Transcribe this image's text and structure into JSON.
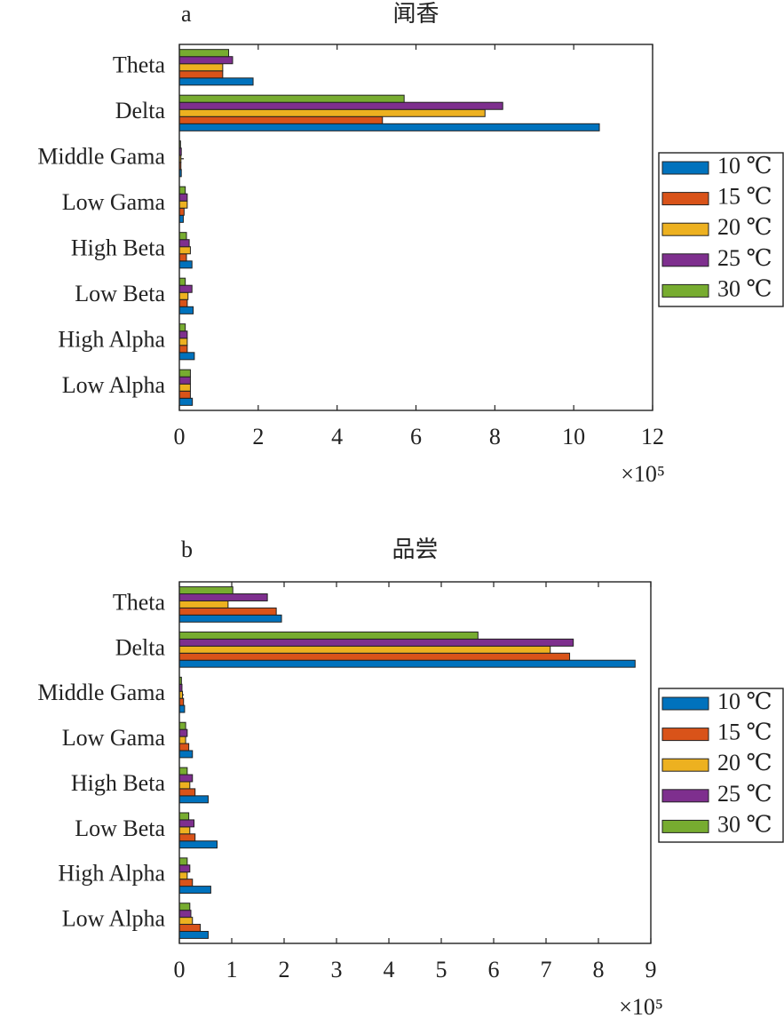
{
  "chart_data": [
    {
      "type": "barh",
      "panel_label": "a",
      "title": "闻香",
      "x_multiplier": "×10⁵",
      "categories": [
        "Low Alpha",
        "High Alpha",
        "Low Beta",
        "High Beta",
        "Low Gama",
        "Middle Gama",
        "Delta",
        "Theta"
      ],
      "series": [
        {
          "name": "10 ℃",
          "color": "#0072BD",
          "values": [
            0.33,
            0.38,
            0.35,
            0.32,
            0.1,
            0.05,
            10.65,
            1.87
          ]
        },
        {
          "name": "15 ℃",
          "color": "#D95319",
          "values": [
            0.28,
            0.2,
            0.2,
            0.18,
            0.12,
            0.04,
            5.15,
            1.1
          ]
        },
        {
          "name": "20 ℃",
          "color": "#EDB120",
          "values": [
            0.28,
            0.2,
            0.22,
            0.28,
            0.2,
            0.04,
            7.75,
            1.1
          ]
        },
        {
          "name": "25 ℃",
          "color": "#7E2F8E",
          "values": [
            0.28,
            0.2,
            0.32,
            0.25,
            0.2,
            0.05,
            8.2,
            1.35
          ]
        },
        {
          "name": "30 ℃",
          "color": "#77AC30",
          "values": [
            0.28,
            0.15,
            0.15,
            0.18,
            0.15,
            0.03,
            5.7,
            1.25
          ]
        }
      ],
      "xlim": [
        0,
        12
      ],
      "xticks": [
        0,
        2,
        4,
        6,
        8,
        10,
        12
      ],
      "legend": "right"
    },
    {
      "type": "barh",
      "panel_label": "b",
      "title": "品尝",
      "x_multiplier": "×10⁵",
      "categories": [
        "Low Alpha",
        "High Alpha",
        "Low Beta",
        "High Beta",
        "Low Gama",
        "Middle Gama",
        "Delta",
        "Theta"
      ],
      "series": [
        {
          "name": "10 ℃",
          "color": "#0072BD",
          "values": [
            0.55,
            0.6,
            0.72,
            0.55,
            0.25,
            0.1,
            8.7,
            1.95
          ]
        },
        {
          "name": "15 ℃",
          "color": "#D95319",
          "values": [
            0.4,
            0.25,
            0.3,
            0.3,
            0.18,
            0.08,
            7.45,
            1.85
          ]
        },
        {
          "name": "20 ℃",
          "color": "#EDB120",
          "values": [
            0.25,
            0.15,
            0.2,
            0.2,
            0.12,
            0.06,
            7.08,
            0.93
          ]
        },
        {
          "name": "25 ℃",
          "color": "#7E2F8E",
          "values": [
            0.22,
            0.2,
            0.28,
            0.25,
            0.15,
            0.05,
            7.52,
            1.68
          ]
        },
        {
          "name": "30 ℃",
          "color": "#77AC30",
          "values": [
            0.2,
            0.15,
            0.18,
            0.15,
            0.12,
            0.04,
            5.7,
            1.02
          ]
        }
      ],
      "xlim": [
        0,
        9
      ],
      "xticks": [
        0,
        1,
        2,
        3,
        4,
        5,
        6,
        7,
        8,
        9
      ],
      "legend": "right"
    }
  ]
}
